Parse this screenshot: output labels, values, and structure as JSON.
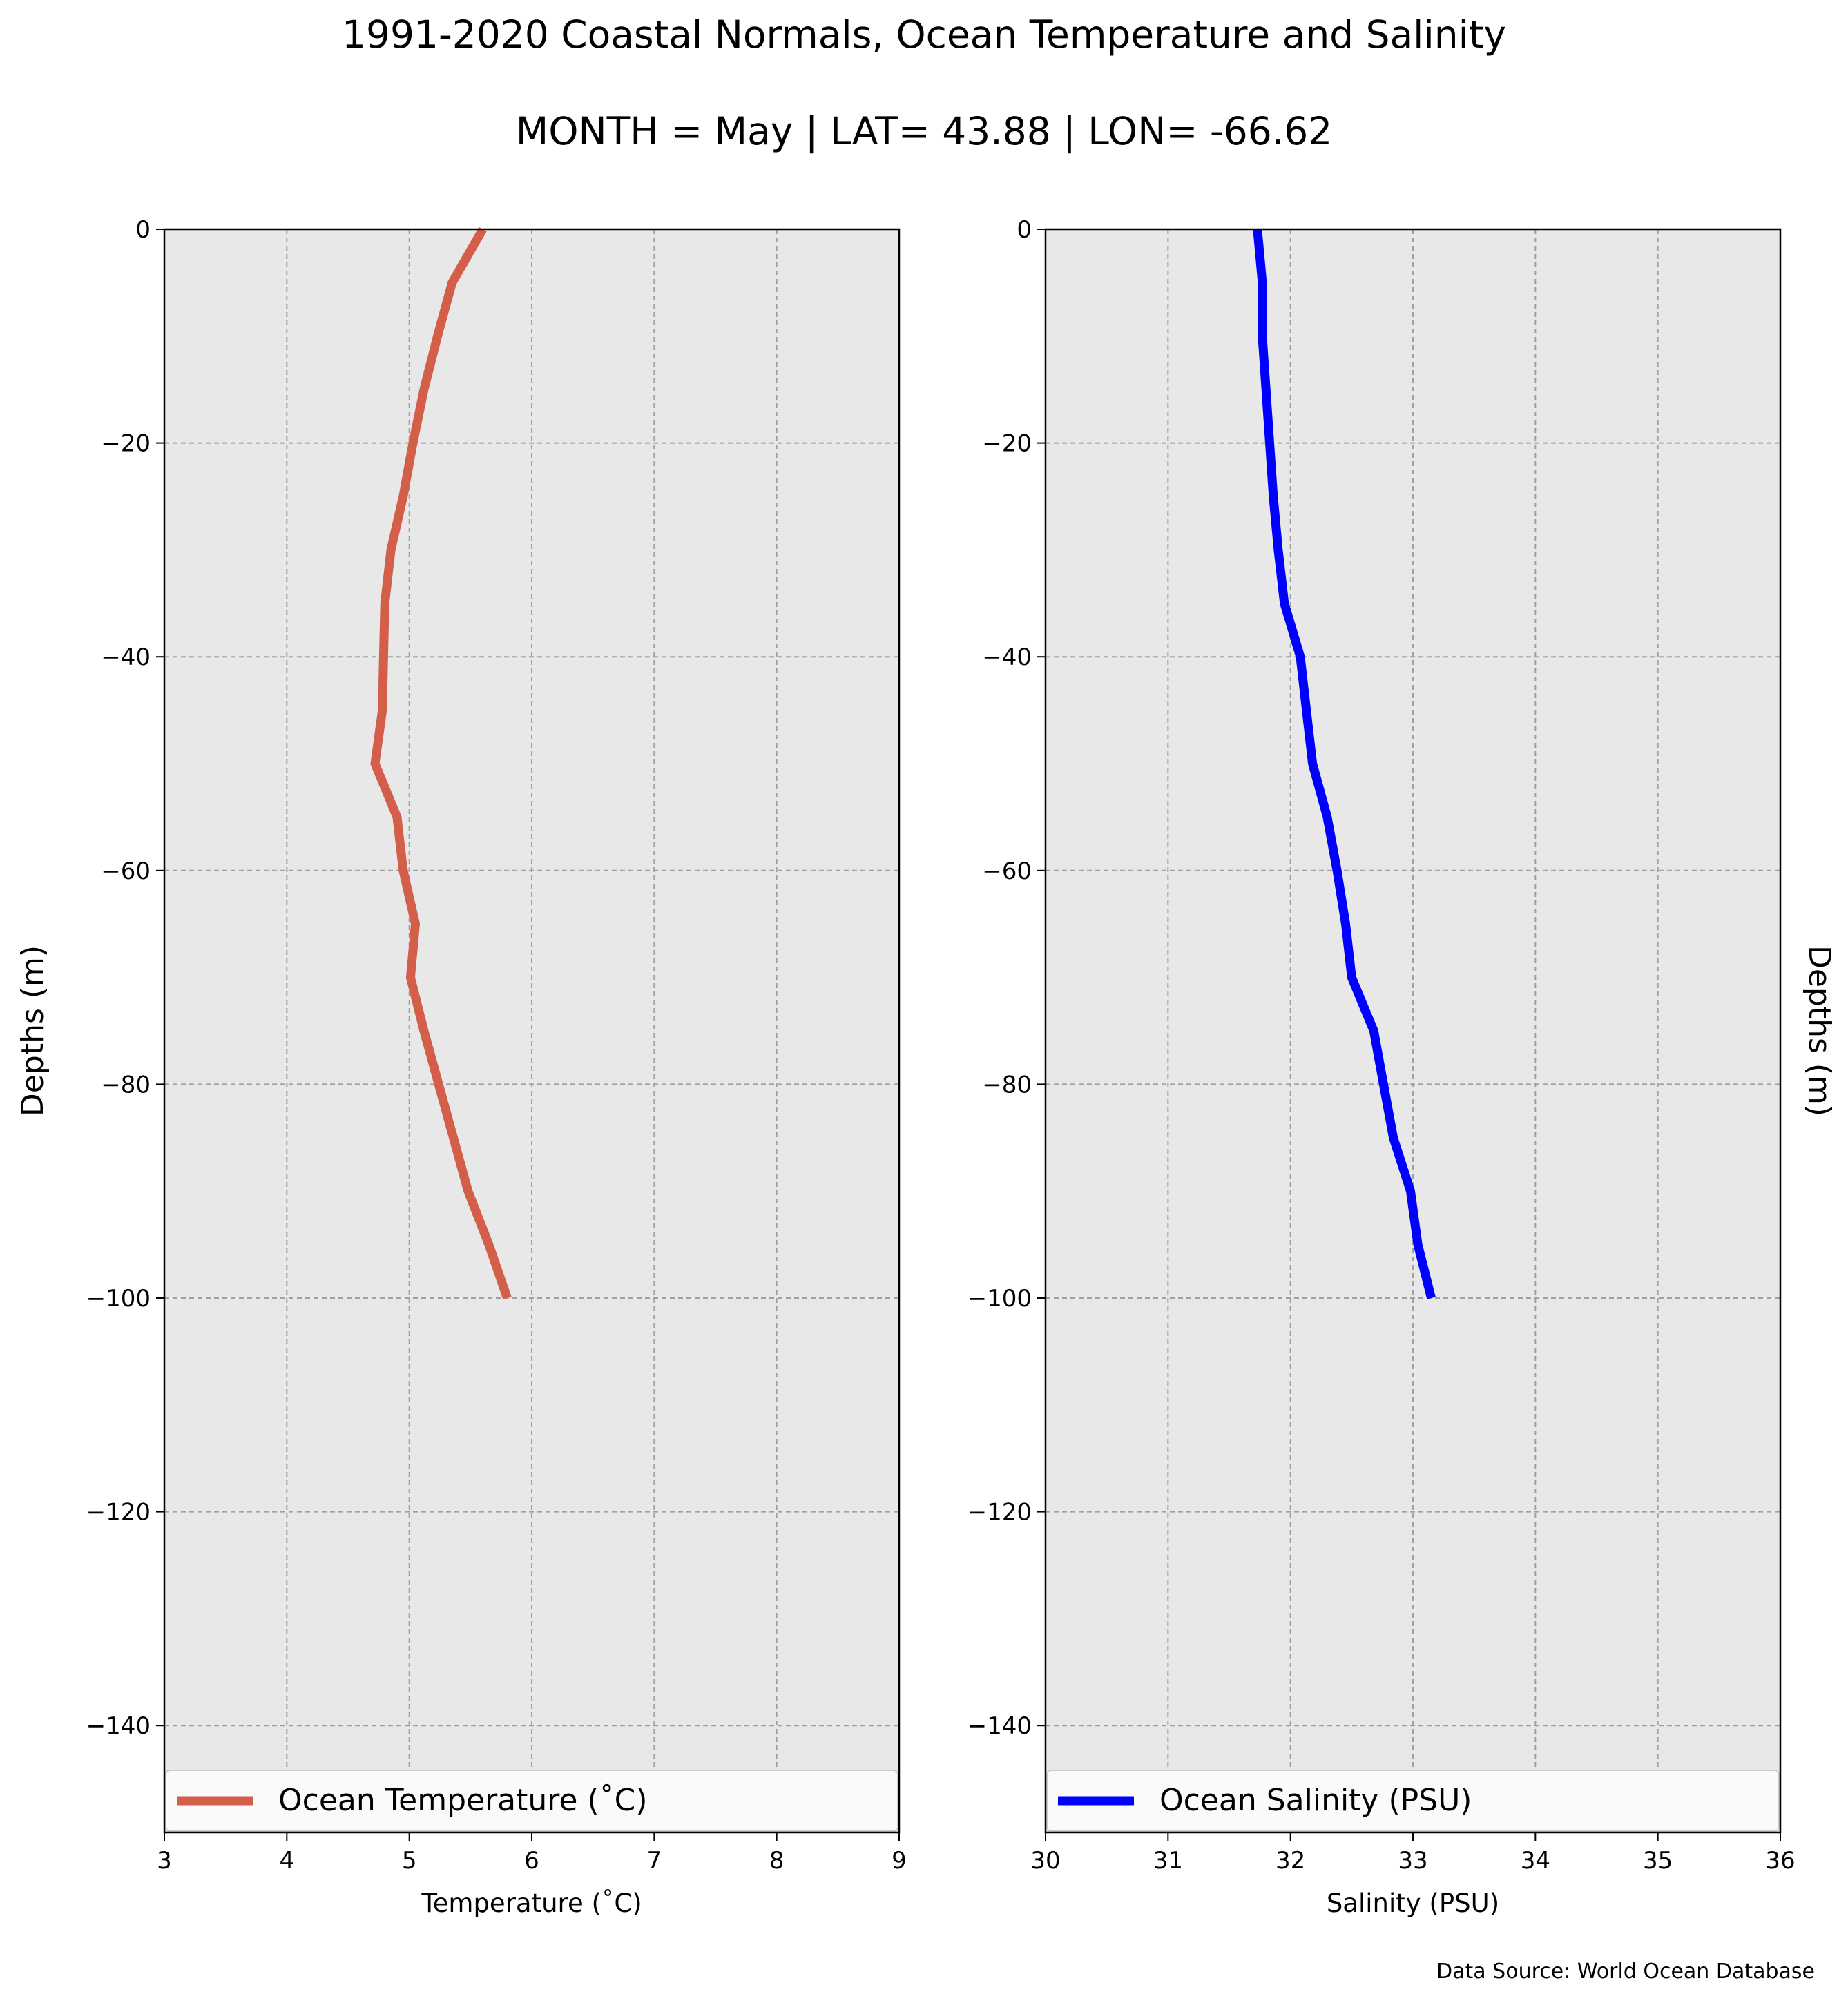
{
  "header": {
    "title": "1991-2020 Coastal Normals, Ocean Temperature and Salinity",
    "subtitle": "MONTH = May | LAT= 43.88 | LON= -66.62"
  },
  "footer": {
    "source": "Data Source: World Ocean Database"
  },
  "colors": {
    "panel_bg": "#e8e8e8",
    "grid": "#a0a0a0",
    "temperature": "#d35f4a",
    "salinity": "#0000ff"
  },
  "chart_data": [
    {
      "type": "line",
      "xlabel": "Temperature (˚C)",
      "ylabel": "Depths (m)",
      "xlim": [
        3,
        9
      ],
      "ylim": [
        -150,
        0
      ],
      "xticks": [
        "3",
        "4",
        "5",
        "6",
        "7",
        "8",
        "9"
      ],
      "yticks": [
        "0",
        "−20",
        "−40",
        "−60",
        "−80",
        "−100",
        "−120",
        "−140"
      ],
      "grid": true,
      "legend_position": "bottom",
      "series": [
        {
          "name": "Ocean Temperature (˚C)",
          "color": "#d35f4a",
          "x": [
            5.6,
            5.35,
            5.23,
            5.12,
            5.03,
            4.95,
            4.85,
            4.8,
            4.79,
            4.78,
            4.72,
            4.9,
            4.95,
            5.05,
            5.01,
            5.12,
            5.24,
            5.36,
            5.48,
            5.65,
            5.8
          ],
          "y": [
            0,
            -5,
            -10,
            -15,
            -20,
            -25,
            -30,
            -35,
            -40,
            -45,
            -50,
            -55,
            -60,
            -65,
            -70,
            -75,
            -80,
            -85,
            -90,
            -95,
            -100
          ]
        }
      ]
    },
    {
      "type": "line",
      "xlabel": "Salinity (PSU)",
      "ylabel": "Depths (m)",
      "xlim": [
        30,
        36
      ],
      "ylim": [
        -150,
        0
      ],
      "xticks": [
        "30",
        "31",
        "32",
        "33",
        "34",
        "35",
        "36"
      ],
      "yticks": [
        "0",
        "−20",
        "−40",
        "−60",
        "−80",
        "−100",
        "−120",
        "−140"
      ],
      "grid": true,
      "legend_position": "bottom",
      "series": [
        {
          "name": "Ocean Salinity (PSU)",
          "color": "#0000ff",
          "x": [
            31.73,
            31.77,
            31.77,
            31.8,
            31.83,
            31.86,
            31.9,
            31.95,
            32.08,
            32.13,
            32.18,
            32.3,
            32.38,
            32.45,
            32.5,
            32.68,
            32.76,
            32.84,
            32.98,
            33.04,
            33.15
          ],
          "y": [
            0,
            -5,
            -10,
            -15,
            -20,
            -25,
            -30,
            -35,
            -40,
            -45,
            -50,
            -55,
            -60,
            -65,
            -70,
            -75,
            -80,
            -85,
            -90,
            -95,
            -100
          ]
        }
      ]
    }
  ]
}
